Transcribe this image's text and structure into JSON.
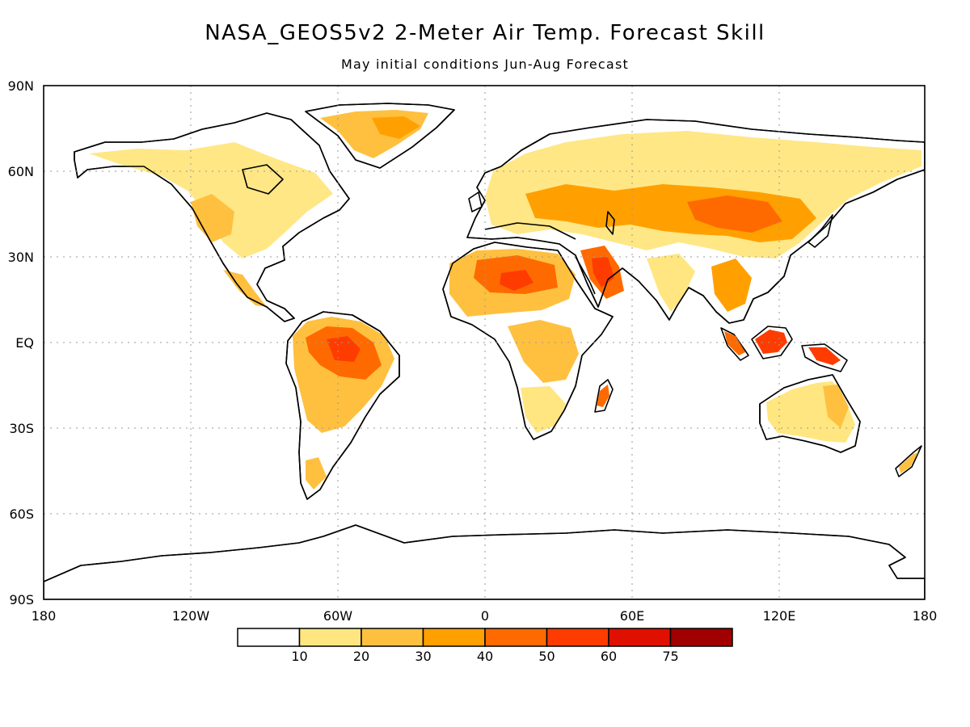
{
  "title": "NASA_GEOS5v2 2-Meter Air Temp. Forecast Skill",
  "subtitle": "May initial conditions  Jun-Aug Forecast",
  "map": {
    "lat_ticks": [
      "90N",
      "60N",
      "30N",
      "EQ",
      "30S",
      "60S",
      "90S"
    ],
    "lon_ticks": [
      "180",
      "120W",
      "60W",
      "0",
      "60E",
      "120E",
      "180"
    ],
    "grid": "dotted",
    "projection": "cylindrical equidistant, 180W to 180E, 90S to 90N"
  },
  "colorbar": {
    "labels": [
      "10",
      "20",
      "30",
      "40",
      "50",
      "60",
      "75"
    ],
    "colors": [
      "#ffffff",
      "#ffe680",
      "#ffc040",
      "#ffa000",
      "#ff6a00",
      "#ff3c00",
      "#e01000",
      "#a00000"
    ]
  },
  "regions": [
    {
      "name": "North America",
      "level": 1,
      "color": "#ffe680"
    },
    {
      "name": "Greenland",
      "level": 2,
      "color": "#ffc040"
    },
    {
      "name": "Central America",
      "level": 2,
      "color": "#ffc040"
    },
    {
      "name": "Amazon",
      "level": 4,
      "color": "#ff6a00"
    },
    {
      "name": "Sahara",
      "level": 4,
      "color": "#ff6a00"
    },
    {
      "name": "Arabian Peninsula",
      "level": 5,
      "color": "#ff3c00"
    },
    {
      "name": "Central Asia",
      "level": 3,
      "color": "#ffa000"
    },
    {
      "name": "Europe / Siberia",
      "level": 2,
      "color": "#ffc040"
    },
    {
      "name": "Borneo",
      "level": 5,
      "color": "#ff3c00"
    },
    {
      "name": "New Guinea",
      "level": 5,
      "color": "#ff3c00"
    },
    {
      "name": "Madagascar",
      "level": 4,
      "color": "#ff6a00"
    },
    {
      "name": "Australia",
      "level": 1,
      "color": "#ffe680"
    }
  ]
}
